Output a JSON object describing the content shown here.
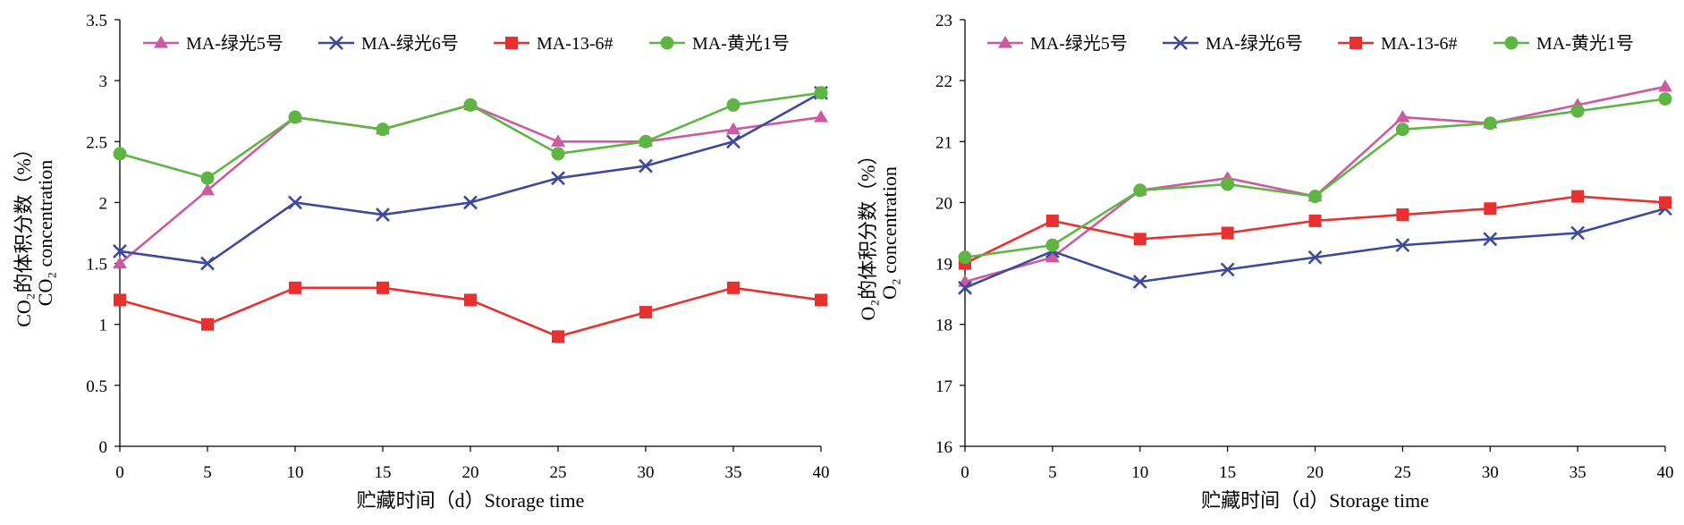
{
  "chart_data": [
    {
      "type": "line",
      "title": "",
      "xlabel": "贮藏时间（d）Storage time",
      "ylabel_cn": "CO₂的体积分数（%）",
      "ylabel_en": "CO₂ concentration",
      "x": [
        0,
        5,
        10,
        15,
        20,
        25,
        30,
        35,
        40
      ],
      "xlim": [
        0,
        40
      ],
      "ylim": [
        0,
        3.5
      ],
      "yticks": [
        0,
        0.5,
        1,
        1.5,
        2,
        2.5,
        3,
        3.5
      ],
      "ytick_labels": [
        "0",
        "0.5",
        "1",
        "1.5",
        "2",
        "2.5",
        "3",
        "3.5"
      ],
      "grid": false,
      "legend_position": "top",
      "series": [
        {
          "name": "MA-绿光5号",
          "color": "#cc5a9f",
          "marker": "triangle",
          "values": [
            1.5,
            2.1,
            2.7,
            2.6,
            2.8,
            2.5,
            2.5,
            2.6,
            2.7
          ]
        },
        {
          "name": "MA-绿光6号",
          "color": "#3d4a9c",
          "marker": "x",
          "values": [
            1.6,
            1.5,
            2.0,
            1.9,
            2.0,
            2.2,
            2.3,
            2.5,
            2.9
          ]
        },
        {
          "name": "MA-13-6#",
          "color": "#e8302f",
          "marker": "square",
          "values": [
            1.2,
            1.0,
            1.3,
            1.3,
            1.2,
            0.9,
            1.1,
            1.3,
            1.2
          ]
        },
        {
          "name": "MA-黄光1号",
          "color": "#5fb544",
          "marker": "circle",
          "values": [
            2.4,
            2.2,
            2.7,
            2.6,
            2.8,
            2.4,
            2.5,
            2.8,
            2.9
          ]
        }
      ]
    },
    {
      "type": "line",
      "title": "",
      "xlabel": "贮藏时间（d）Storage time",
      "ylabel_cn": "O₂的体积分数（%）",
      "ylabel_en": "O₂ concentration",
      "x": [
        0,
        5,
        10,
        15,
        20,
        25,
        30,
        35,
        40
      ],
      "xlim": [
        0,
        40
      ],
      "ylim": [
        16,
        23
      ],
      "yticks": [
        16,
        17,
        18,
        19,
        20,
        21,
        22,
        23
      ],
      "ytick_labels": [
        "16",
        "17",
        "18",
        "19",
        "20",
        "21",
        "22",
        "23"
      ],
      "grid": false,
      "legend_position": "top",
      "series": [
        {
          "name": "MA-绿光5号",
          "color": "#cc5a9f",
          "marker": "triangle",
          "values": [
            18.7,
            19.1,
            20.2,
            20.4,
            20.1,
            21.4,
            21.3,
            21.6,
            21.9
          ]
        },
        {
          "name": "MA-绿光6号",
          "color": "#3d4a9c",
          "marker": "x",
          "values": [
            18.6,
            19.2,
            18.7,
            18.9,
            19.1,
            19.3,
            19.4,
            19.5,
            19.9
          ]
        },
        {
          "name": "MA-13-6#",
          "color": "#e8302f",
          "marker": "square",
          "values": [
            19.0,
            19.7,
            19.4,
            19.5,
            19.7,
            19.8,
            19.9,
            20.1,
            20.0
          ]
        },
        {
          "name": "MA-黄光1号",
          "color": "#5fb544",
          "marker": "circle",
          "values": [
            19.1,
            19.3,
            20.2,
            20.3,
            20.1,
            21.2,
            21.3,
            21.5,
            21.7
          ]
        }
      ]
    }
  ]
}
